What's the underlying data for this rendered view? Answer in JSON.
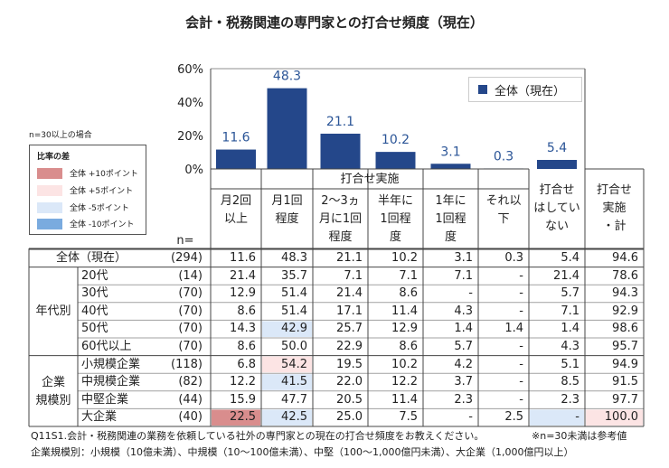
{
  "title": "会計・税務関連の専門家との打合せ頻度（現在）",
  "legend_label": "全体（現在）",
  "note_min": "n=30以上の場合",
  "diff_legend": {
    "title": "比率の差",
    "items": [
      {
        "label": "全体 +10ポイント",
        "color": "#d98d8d"
      },
      {
        "label": "全体 +5ポイント",
        "color": "#fce4e4"
      },
      {
        "label": "全体 -5ポイント",
        "color": "#dbe8f8"
      },
      {
        "label": "全体 -10ポイント",
        "color": "#7aabdf"
      }
    ]
  },
  "colors": {
    "bar": "#24478a",
    "value_label": "#2b5597",
    "plus10": "#d98d8d",
    "plus5": "#fce4e4",
    "minus5": "#dbe8f8",
    "minus10": "#7aabdf"
  },
  "chart_data": {
    "type": "bar",
    "title": "会計・税務関連の専門家との打合せ頻度（現在）",
    "series": [
      {
        "name": "全体（現在）",
        "values": [
          11.6,
          48.3,
          21.1,
          10.2,
          3.1,
          0.3,
          5.4
        ]
      }
    ],
    "categories": [
      "月2回以上",
      "月1回程度",
      "2～3ヵ月に1回程度",
      "半年に1回程度",
      "1年に1回程度",
      "それ以下",
      "打合せはしていない"
    ],
    "ylim": [
      0,
      60
    ],
    "yticks": [
      "0%",
      "20%",
      "40%",
      "60%"
    ],
    "value_labels": [
      "11.6",
      "48.3",
      "21.1",
      "10.2",
      "3.1",
      "0.3",
      "5.4"
    ],
    "grid": false,
    "legend": "top-right"
  },
  "table": {
    "group_header": "打合せ実施",
    "n_header": "n=",
    "col_headers": [
      [
        "月2回",
        "以上"
      ],
      [
        "月1回",
        "程度"
      ],
      [
        "2～3ヵ",
        "月に1回",
        "程度"
      ],
      [
        "半年に",
        "1回程",
        "度"
      ],
      [
        "1年に",
        "1回程",
        "度"
      ],
      [
        "それ以",
        "下"
      ],
      [
        "打合せ",
        "はしてい",
        "ない"
      ],
      [
        "打合せ",
        "実施",
        "・計"
      ]
    ],
    "groups": [
      {
        "label": [
          "年代別"
        ],
        "rows": [
          1,
          5
        ]
      },
      {
        "label": [
          "企業",
          "規模別"
        ],
        "rows": [
          6,
          9
        ]
      }
    ],
    "rows": [
      {
        "label": "全体（現在）",
        "n": "(294)",
        "values": [
          "11.6",
          "48.3",
          "21.1",
          "10.2",
          "3.1",
          "0.3",
          "5.4",
          "94.6"
        ],
        "hl": [
          null,
          null,
          null,
          null,
          null,
          null,
          null,
          null
        ]
      },
      {
        "label": "20代",
        "n": "(14)",
        "values": [
          "21.4",
          "35.7",
          "7.1",
          "7.1",
          "7.1",
          "-",
          "21.4",
          "78.6"
        ],
        "hl": [
          null,
          null,
          null,
          null,
          null,
          null,
          null,
          null
        ]
      },
      {
        "label": "30代",
        "n": "(70)",
        "values": [
          "12.9",
          "51.4",
          "21.4",
          "8.6",
          "-",
          "-",
          "5.7",
          "94.3"
        ],
        "hl": [
          null,
          null,
          null,
          null,
          null,
          null,
          null,
          null
        ]
      },
      {
        "label": "40代",
        "n": "(70)",
        "values": [
          "8.6",
          "51.4",
          "17.1",
          "11.4",
          "4.3",
          "-",
          "7.1",
          "92.9"
        ],
        "hl": [
          null,
          null,
          null,
          null,
          null,
          null,
          null,
          null
        ]
      },
      {
        "label": "50代",
        "n": "(70)",
        "values": [
          "14.3",
          "42.9",
          "25.7",
          "12.9",
          "1.4",
          "1.4",
          "1.4",
          "98.6"
        ],
        "hl": [
          null,
          "minus5",
          null,
          null,
          null,
          null,
          null,
          null
        ]
      },
      {
        "label": "60代以上",
        "n": "(70)",
        "values": [
          "8.6",
          "50.0",
          "22.9",
          "8.6",
          "5.7",
          "-",
          "4.3",
          "95.7"
        ],
        "hl": [
          null,
          null,
          null,
          null,
          null,
          null,
          null,
          null
        ]
      },
      {
        "label": "小規模企業",
        "n": "(118)",
        "values": [
          "6.8",
          "54.2",
          "19.5",
          "10.2",
          "4.2",
          "-",
          "5.1",
          "94.9"
        ],
        "hl": [
          null,
          "plus5",
          null,
          null,
          null,
          null,
          null,
          null
        ]
      },
      {
        "label": "中規模企業",
        "n": "(82)",
        "values": [
          "12.2",
          "41.5",
          "22.0",
          "12.2",
          "3.7",
          "-",
          "8.5",
          "91.5"
        ],
        "hl": [
          null,
          "minus5",
          null,
          null,
          null,
          null,
          null,
          null
        ]
      },
      {
        "label": "中堅企業",
        "n": "(44)",
        "values": [
          "15.9",
          "47.7",
          "20.5",
          "11.4",
          "2.3",
          "-",
          "2.3",
          "97.7"
        ],
        "hl": [
          null,
          null,
          null,
          null,
          null,
          null,
          null,
          null
        ]
      },
      {
        "label": "大企業",
        "n": "(40)",
        "values": [
          "22.5",
          "42.5",
          "25.0",
          "7.5",
          "-",
          "2.5",
          "-",
          "100.0"
        ],
        "hl": [
          "plus10",
          "minus5",
          null,
          null,
          null,
          null,
          "minus5",
          "plus5"
        ]
      }
    ]
  },
  "footnotes": {
    "q": "Q11S1.会計・税務関連の業務を依頼している社外の専門家との現在の打合せ頻度をお教えください。",
    "ref": "※n=30未満は参考値",
    "size": "企業規模別：小規模（10億未満）、中規模（10～100億未満）、中堅（100～1,000億円未満）、大企業（1,000億円以上）"
  }
}
